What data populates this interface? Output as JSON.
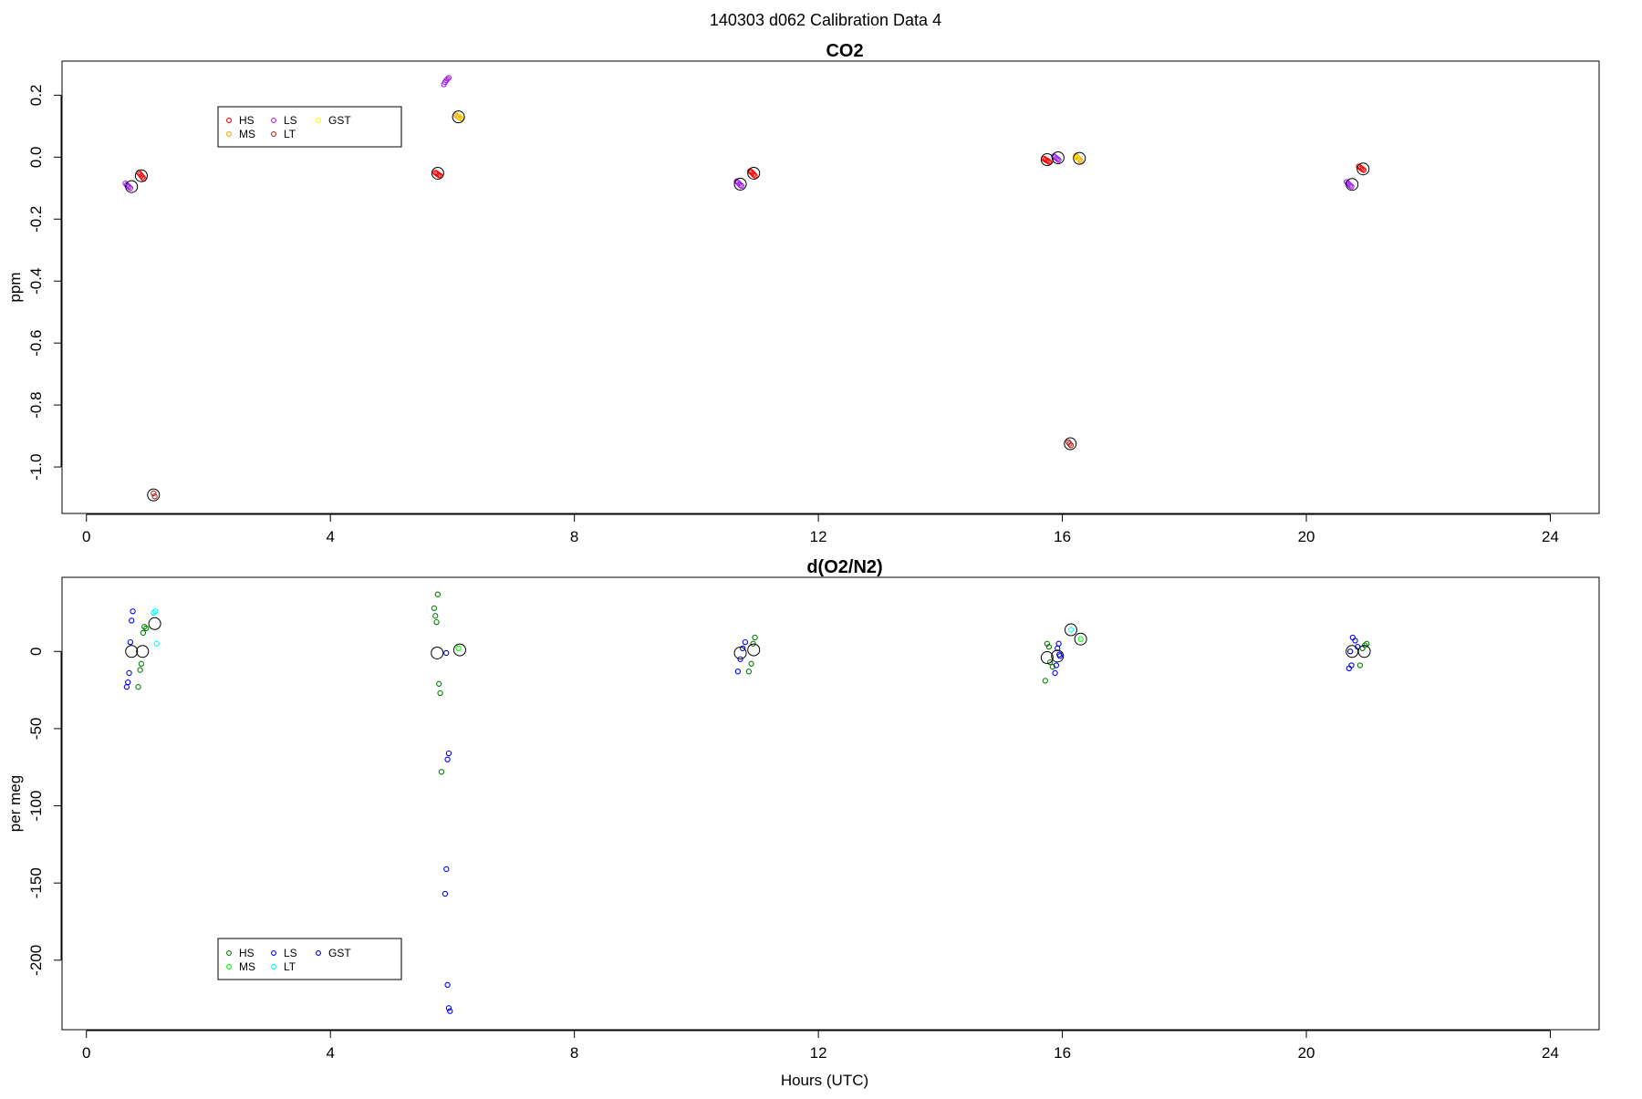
{
  "figure": {
    "suptitle": "140303   d062   Calibration Data 4"
  },
  "chart_data": [
    {
      "type": "scatter",
      "title": "CO2",
      "xlabel": "",
      "ylabel": "ppm",
      "xlim": [
        -0.4,
        24.8
      ],
      "ylim": [
        -1.15,
        0.31
      ],
      "xticks": [
        0,
        4,
        8,
        12,
        16,
        20,
        24
      ],
      "yticks": [
        0.2,
        0.0,
        -0.2,
        -0.4,
        -0.6,
        -0.8,
        -1.0
      ],
      "ytick_labels": [
        "0.2",
        "0.0",
        "-0.2",
        "-0.4",
        "-0.6",
        "-0.8",
        "-1.0"
      ],
      "grid": false,
      "legend": {
        "placement": "top-left",
        "entries": [
          {
            "label": "HS",
            "color": "#ff0000"
          },
          {
            "label": "MS",
            "color": "#ffa500"
          },
          {
            "label": "LS",
            "color": "#a020f0"
          },
          {
            "label": "LT",
            "color": "#b22222"
          },
          {
            "label": "GST",
            "color": "#ffff00"
          }
        ]
      },
      "series": [
        {
          "color": "#ff0000",
          "x": [
            0.86,
            0.88,
            0.9,
            0.92,
            0.94,
            5.72,
            5.74,
            5.76,
            5.78,
            5.8,
            10.88,
            10.9,
            10.92,
            10.94,
            10.96,
            15.7,
            15.72,
            15.74,
            15.76,
            15.78,
            20.86,
            20.88,
            20.9,
            20.92,
            20.94
          ],
          "y": [
            -0.05,
            -0.055,
            -0.06,
            -0.065,
            -0.07,
            -0.05,
            -0.052,
            -0.055,
            -0.058,
            -0.06,
            -0.045,
            -0.048,
            -0.052,
            -0.056,
            -0.06,
            -0.005,
            -0.008,
            -0.01,
            -0.012,
            -0.015,
            -0.03,
            -0.033,
            -0.036,
            -0.039,
            -0.042
          ]
        },
        {
          "color": "#a020f0",
          "x": [
            0.64,
            0.66,
            0.68,
            0.7,
            0.72,
            5.86,
            5.88,
            5.9,
            5.92,
            5.94,
            10.66,
            10.68,
            10.7,
            10.72,
            10.74,
            15.86,
            15.88,
            15.9,
            15.92,
            15.94,
            20.66,
            20.68,
            20.7,
            20.72,
            20.74
          ],
          "y": [
            -0.085,
            -0.09,
            -0.093,
            -0.096,
            -0.1,
            0.235,
            0.242,
            0.248,
            0.252,
            0.256,
            -0.078,
            -0.082,
            -0.086,
            -0.09,
            -0.093,
            0.003,
            0.0,
            -0.003,
            -0.006,
            -0.009,
            -0.08,
            -0.084,
            -0.088,
            -0.092,
            -0.095
          ]
        },
        {
          "color": "#ffa500",
          "x": [
            6.06,
            6.08,
            6.1,
            6.12,
            6.14,
            16.22,
            16.24,
            16.26,
            16.28,
            16.3
          ],
          "y": [
            0.135,
            0.132,
            0.13,
            0.128,
            0.125,
            0.005,
            0.0,
            -0.004,
            -0.008,
            -0.012
          ]
        },
        {
          "color": "#b22222",
          "x": [
            1.1,
            1.12,
            16.1,
            16.12,
            16.14
          ],
          "y": [
            -1.085,
            -1.095,
            -0.92,
            -0.925,
            -0.93
          ]
        },
        {
          "color": "#ffff00",
          "x": [
            6.12,
            16.24
          ],
          "y": [
            0.13,
            -0.003
          ]
        }
      ],
      "means": {
        "x": [
          0.74,
          0.9,
          1.1,
          5.76,
          6.1,
          10.72,
          10.94,
          15.75,
          15.93,
          16.13,
          16.28,
          20.75,
          20.93
        ],
        "y": [
          -0.095,
          -0.06,
          -1.09,
          -0.052,
          0.13,
          -0.087,
          -0.052,
          -0.008,
          -0.002,
          -0.925,
          -0.004,
          -0.088,
          -0.038
        ]
      }
    },
    {
      "type": "scatter",
      "title": "d(O2/N2)",
      "xlabel": "Hours (UTC)",
      "ylabel": "per meg",
      "xlim": [
        -0.4,
        24.8
      ],
      "ylim": [
        -245,
        48
      ],
      "xticks": [
        0,
        4,
        8,
        12,
        16,
        20,
        24
      ],
      "yticks": [
        0,
        -50,
        -100,
        -150,
        -200
      ],
      "ytick_labels": [
        "0",
        "-50",
        "-100",
        "-150",
        "-200"
      ],
      "grid": false,
      "legend": {
        "placement": "bottom-left",
        "entries": [
          {
            "label": "HS",
            "color": "#008000"
          },
          {
            "label": "MS",
            "color": "#00ff00"
          },
          {
            "label": "LS",
            "color": "#0000ff"
          },
          {
            "label": "LT",
            "color": "#00ffff"
          },
          {
            "label": "GST",
            "color": "#0000aa"
          }
        ]
      },
      "series": [
        {
          "color": "#008000",
          "x": [
            0.85,
            0.88,
            0.9,
            0.93,
            0.95,
            0.98,
            5.7,
            5.72,
            5.74,
            5.76,
            5.78,
            5.8,
            5.82,
            10.86,
            10.9,
            10.93,
            10.96,
            15.72,
            15.75,
            15.78,
            15.8,
            15.84,
            20.88,
            20.92,
            20.96,
            20.99
          ],
          "y": [
            -23,
            -12,
            -8,
            12,
            16,
            15,
            28,
            23,
            19,
            37,
            -21,
            -27,
            -78,
            -13,
            -8,
            5,
            9,
            -19,
            5,
            3,
            -7,
            -10,
            -9,
            2,
            4,
            5
          ]
        },
        {
          "color": "#00ff00",
          "x": [
            16.3,
            6.1
          ],
          "y": [
            8,
            2
          ]
        },
        {
          "color": "#0000ff",
          "x": [
            0.66,
            0.68,
            0.7,
            0.72,
            0.74,
            0.76,
            5.88,
            5.9,
            5.92,
            5.94,
            5.96,
            5.92,
            5.94,
            10.68,
            10.72,
            10.76,
            10.8,
            15.92,
            15.94,
            15.96,
            15.9,
            15.88,
            20.7,
            20.74,
            20.76,
            20.8,
            20.84
          ],
          "y": [
            -23,
            -20,
            -14,
            6,
            20,
            26,
            -157,
            -141,
            -216,
            -231,
            -233,
            -70,
            -66,
            -13,
            -5,
            2,
            6,
            2,
            5,
            -3,
            -9,
            -14,
            -11,
            -9,
            9,
            7,
            3
          ]
        },
        {
          "color": "#00ffff",
          "x": [
            1.1,
            1.13,
            1.15,
            16.14
          ],
          "y": [
            25,
            26,
            5,
            14
          ]
        },
        {
          "color": "#0000aa",
          "x": [
            5.9,
            15.95,
            20.72
          ],
          "y": [
            -1,
            -2,
            0
          ]
        }
      ],
      "means": {
        "x": [
          0.74,
          0.92,
          1.12,
          5.75,
          6.12,
          10.72,
          10.94,
          15.75,
          15.92,
          16.14,
          16.3,
          20.75,
          20.95
        ],
        "y": [
          0,
          0,
          18,
          -1,
          1,
          -1,
          1,
          -4,
          -3,
          14,
          8,
          0,
          0
        ]
      }
    }
  ]
}
